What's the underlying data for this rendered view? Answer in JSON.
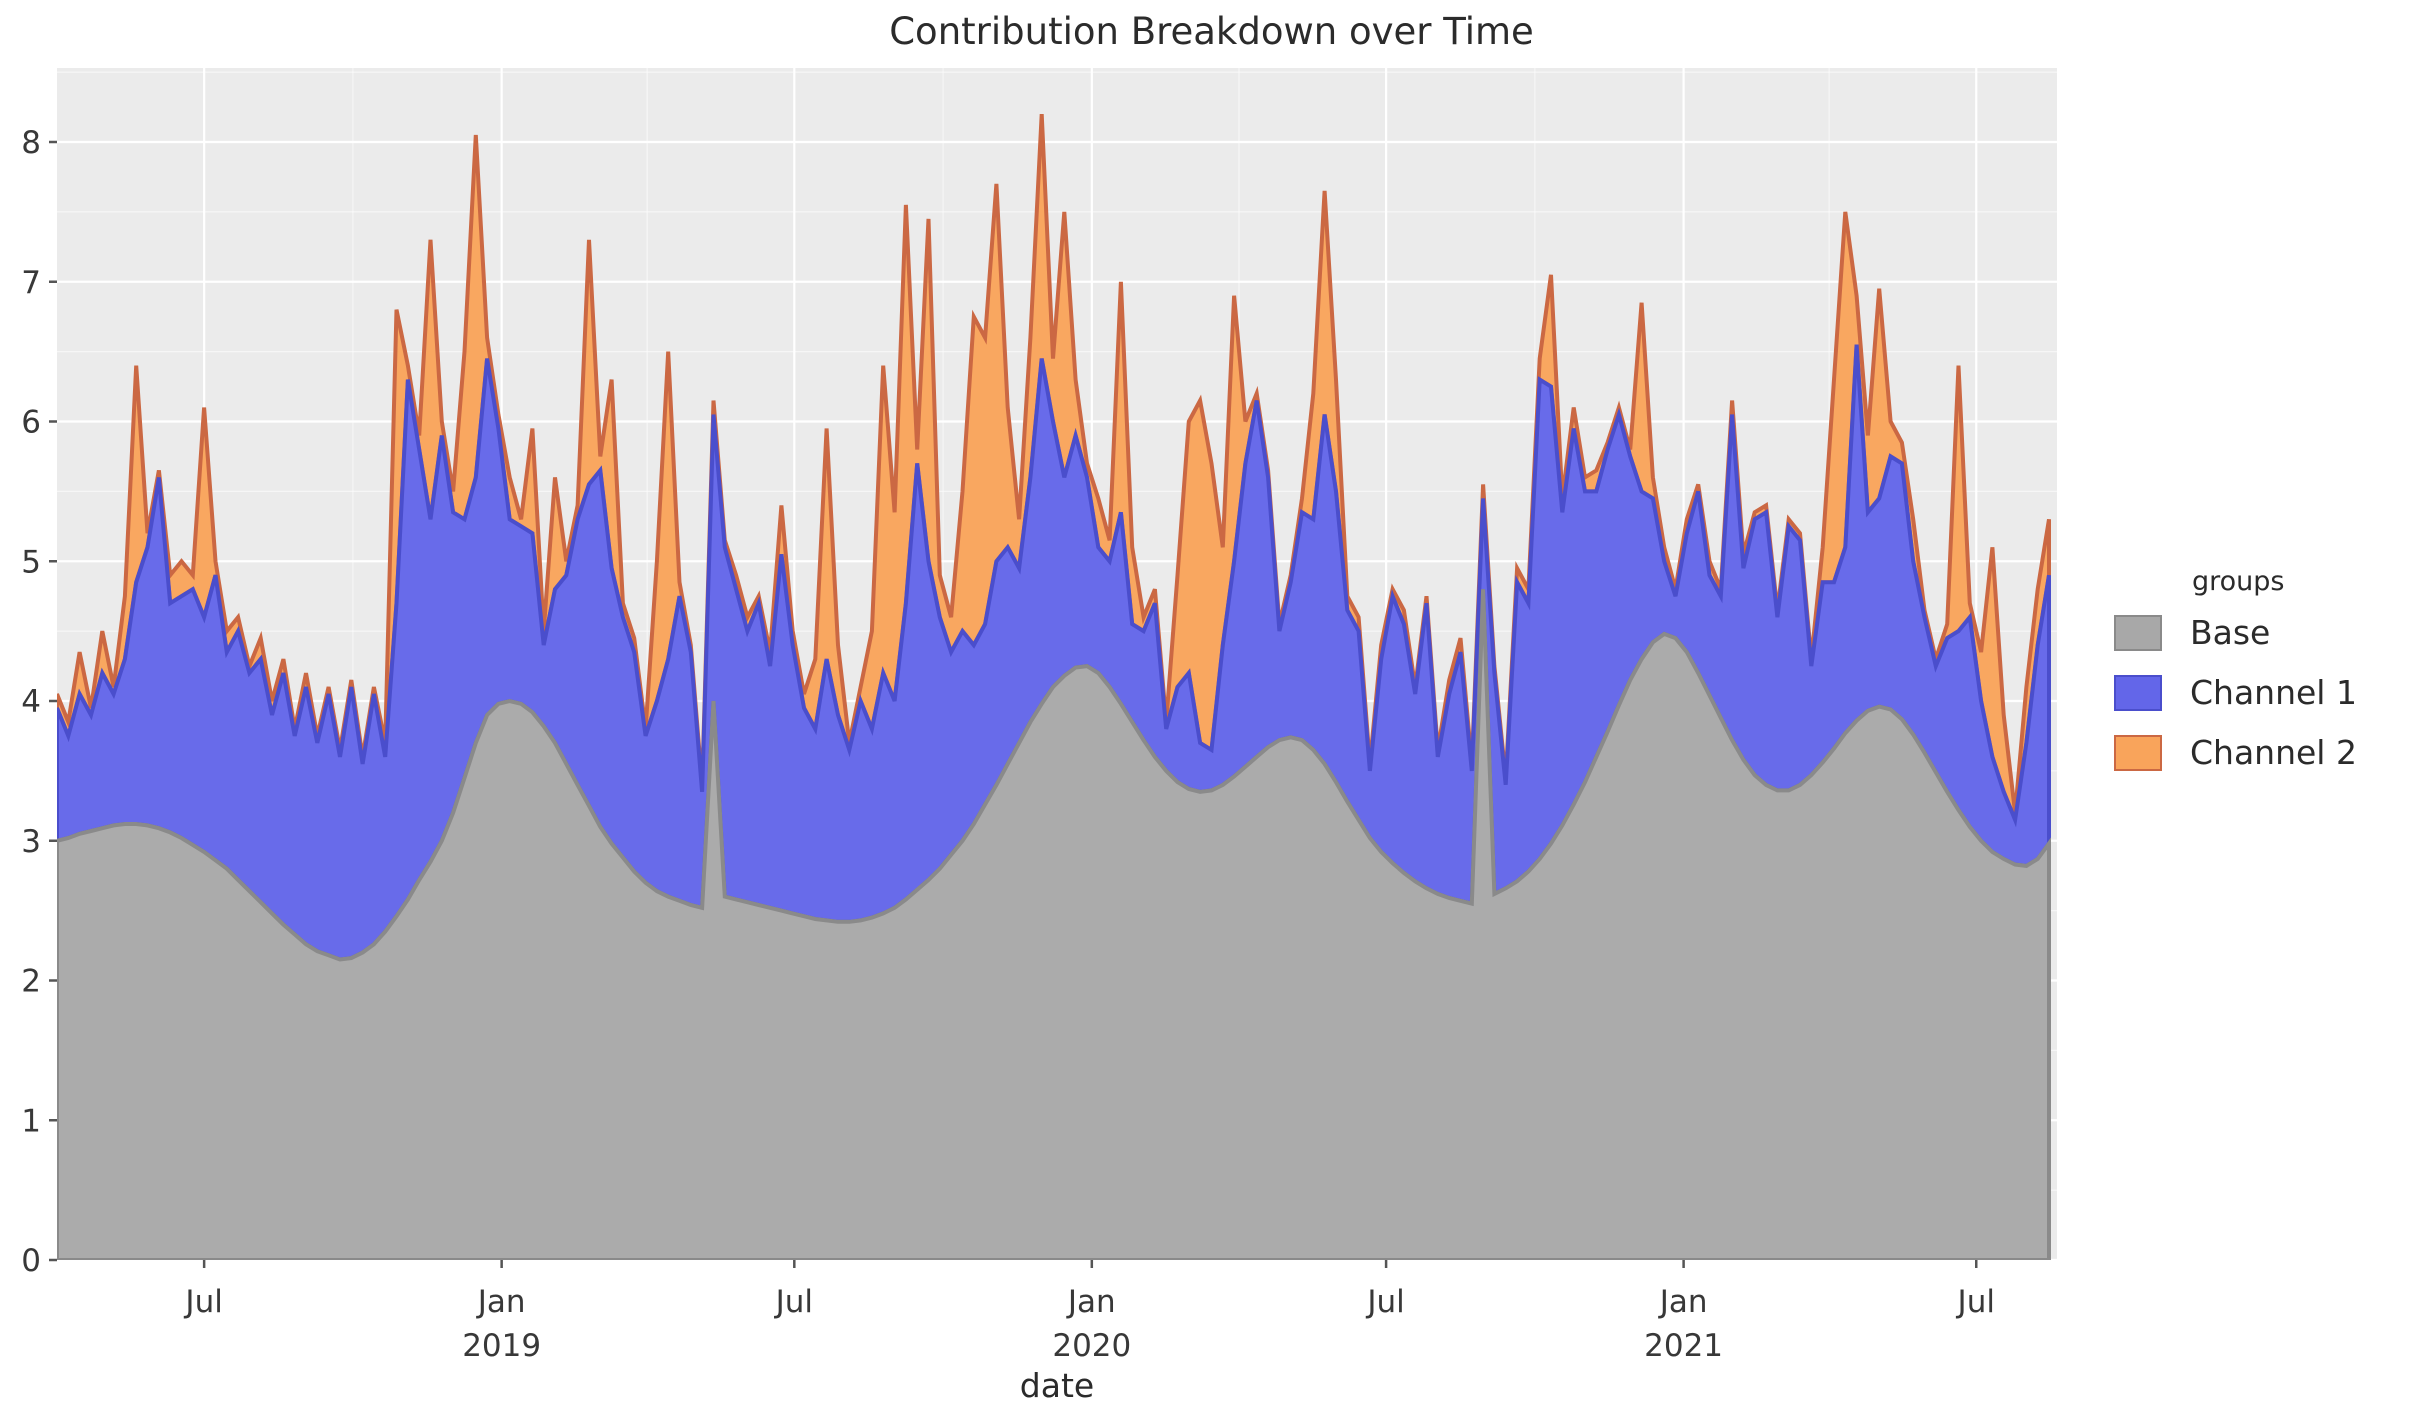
{
  "title": "Contribution Breakdown over Time",
  "x_axis_title": "date",
  "legend": {
    "title": "groups",
    "entries": [
      {
        "label": "Base"
      },
      {
        "label": "Channel 1"
      },
      {
        "label": "Channel 2"
      }
    ]
  },
  "colors": {
    "panel_background": "#ebebeb",
    "figure_background": "#ffffff",
    "major_grid": "#ffffff",
    "minor_grid": "#f7f7f7",
    "text": "#2b2b2b",
    "tick_text": "#383838"
  },
  "chart_data": {
    "type": "area",
    "stacked": true,
    "title": "Contribution Breakdown over Time",
    "xlabel": "date",
    "ylabel": "",
    "grid": true,
    "legend_position": "right",
    "ylim": [
      0,
      8.53
    ],
    "y_ticks": [
      0,
      1,
      2,
      3,
      4,
      5,
      6,
      7,
      8
    ],
    "x_start_date": "2018-04-01",
    "x_step_days": 7,
    "n_points": 177,
    "x_ticks": [
      {
        "date": "2018-07-01",
        "label": "Jul",
        "year": ""
      },
      {
        "date": "2019-01-01",
        "label": "Jan",
        "year": "2019"
      },
      {
        "date": "2019-07-01",
        "label": "Jul",
        "year": ""
      },
      {
        "date": "2020-01-01",
        "label": "Jan",
        "year": "2020"
      },
      {
        "date": "2020-07-01",
        "label": "Jul",
        "year": ""
      },
      {
        "date": "2021-01-01",
        "label": "Jan",
        "year": "2021"
      },
      {
        "date": "2021-07-01",
        "label": "Jul",
        "year": ""
      }
    ],
    "x_minor_tick_dates": [
      "2018-10-01",
      "2019-04-01",
      "2019-10-01",
      "2020-04-01",
      "2020-10-01",
      "2021-04-01"
    ],
    "series": [
      {
        "name": "Base",
        "fill": "#a8a8a8",
        "stroke": "#8a8a8a",
        "values": [
          3.0,
          3.02,
          3.05,
          3.07,
          3.09,
          3.11,
          3.12,
          3.12,
          3.11,
          3.09,
          3.06,
          3.02,
          2.97,
          2.92,
          2.86,
          2.8,
          2.72,
          2.64,
          2.56,
          2.48,
          2.4,
          2.33,
          2.26,
          2.21,
          2.18,
          2.15,
          2.16,
          2.2,
          2.26,
          2.35,
          2.46,
          2.58,
          2.72,
          2.85,
          3.0,
          3.2,
          3.45,
          3.7,
          3.9,
          3.98,
          4.0,
          3.98,
          3.92,
          3.82,
          3.7,
          3.55,
          3.4,
          3.25,
          3.1,
          2.98,
          2.88,
          2.78,
          2.7,
          2.64,
          2.6,
          2.57,
          2.54,
          2.52,
          4.0,
          2.6,
          2.58,
          2.56,
          2.54,
          2.52,
          2.5,
          2.48,
          2.46,
          2.44,
          2.43,
          2.42,
          2.42,
          2.43,
          2.45,
          2.48,
          2.52,
          2.58,
          2.65,
          2.72,
          2.8,
          2.9,
          3.0,
          3.12,
          3.26,
          3.4,
          3.55,
          3.7,
          3.85,
          3.98,
          4.1,
          4.18,
          4.24,
          4.25,
          4.2,
          4.1,
          3.98,
          3.85,
          3.72,
          3.6,
          3.5,
          3.42,
          3.37,
          3.35,
          3.36,
          3.4,
          3.46,
          3.53,
          3.6,
          3.67,
          3.72,
          3.74,
          3.72,
          3.65,
          3.55,
          3.42,
          3.28,
          3.15,
          3.02,
          2.92,
          2.84,
          2.77,
          2.71,
          2.66,
          2.62,
          2.59,
          2.57,
          2.55,
          4.8,
          2.62,
          2.66,
          2.71,
          2.78,
          2.87,
          2.98,
          3.11,
          3.26,
          3.42,
          3.6,
          3.78,
          3.97,
          4.15,
          4.3,
          4.42,
          4.48,
          4.45,
          4.35,
          4.2,
          4.04,
          3.88,
          3.72,
          3.58,
          3.47,
          3.4,
          3.36,
          3.36,
          3.4,
          3.47,
          3.56,
          3.66,
          3.77,
          3.86,
          3.93,
          3.96,
          3.94,
          3.87,
          3.76,
          3.63,
          3.49,
          3.35,
          3.22,
          3.1,
          3.0,
          2.92,
          2.87,
          2.83,
          2.82,
          2.87,
          2.98
        ]
      },
      {
        "name": "Channel 1",
        "fill": "#6366e9",
        "stroke": "#4a4ecc",
        "values": [
          0.95,
          0.73,
          1.0,
          0.83,
          1.11,
          0.94,
          1.18,
          1.73,
          1.99,
          2.51,
          1.64,
          1.73,
          1.83,
          1.68,
          2.04,
          1.55,
          1.78,
          1.56,
          1.74,
          1.42,
          1.8,
          1.42,
          1.84,
          1.49,
          1.87,
          1.45,
          1.94,
          1.35,
          1.79,
          1.25,
          2.24,
          3.72,
          3.08,
          2.45,
          2.9,
          2.15,
          1.85,
          1.9,
          2.55,
          1.97,
          1.3,
          1.27,
          1.28,
          0.58,
          1.1,
          1.35,
          1.9,
          2.3,
          2.55,
          1.97,
          1.72,
          1.57,
          1.05,
          1.36,
          1.7,
          2.18,
          1.81,
          0.83,
          2.05,
          2.5,
          2.22,
          1.94,
          2.16,
          1.73,
          2.55,
          1.92,
          1.49,
          1.36,
          1.87,
          1.48,
          1.23,
          1.57,
          1.35,
          1.72,
          1.48,
          2.12,
          3.05,
          2.28,
          1.8,
          1.45,
          1.5,
          1.28,
          1.29,
          1.6,
          1.55,
          1.25,
          1.75,
          2.47,
          1.9,
          1.42,
          1.66,
          1.35,
          0.9,
          0.9,
          1.37,
          0.7,
          0.78,
          1.1,
          0.3,
          0.68,
          0.83,
          0.35,
          0.29,
          1.0,
          1.54,
          2.17,
          2.55,
          1.93,
          0.78,
          1.11,
          1.63,
          1.65,
          2.5,
          2.08,
          1.37,
          1.35,
          0.48,
          1.38,
          1.91,
          1.78,
          1.34,
          2.04,
          0.98,
          1.46,
          1.78,
          0.95,
          0.65,
          1.58,
          0.74,
          2.14,
          1.92,
          3.43,
          3.27,
          2.24,
          2.69,
          2.08,
          1.9,
          2.02,
          2.08,
          1.6,
          1.2,
          1.03,
          0.52,
          0.3,
          0.85,
          1.3,
          0.86,
          0.87,
          2.33,
          1.37,
          1.83,
          1.95,
          1.24,
          1.89,
          1.75,
          0.78,
          1.29,
          1.19,
          1.33,
          2.69,
          1.42,
          1.49,
          1.81,
          1.83,
          1.24,
          0.97,
          0.76,
          1.1,
          1.28,
          1.5,
          1.0,
          0.68,
          0.48,
          0.32,
          0.88,
          1.53,
          1.92
        ]
      },
      {
        "name": "Channel 2",
        "fill": "#f9a45b",
        "stroke": "#cb6843",
        "values": [
          0.1,
          0.1,
          0.3,
          0.05,
          0.3,
          0.05,
          0.45,
          1.55,
          0.1,
          0.05,
          0.2,
          0.25,
          0.1,
          1.5,
          0.1,
          0.15,
          0.1,
          0.05,
          0.15,
          0.1,
          0.1,
          0.05,
          0.1,
          0.05,
          0.05,
          0.05,
          0.05,
          0.05,
          0.05,
          0.1,
          2.1,
          0.1,
          0.1,
          2.0,
          0.1,
          0.15,
          1.2,
          2.45,
          0.15,
          0.1,
          0.3,
          0.05,
          0.75,
          0.1,
          0.8,
          0.1,
          0.1,
          1.75,
          0.1,
          1.35,
          0.1,
          0.1,
          0.05,
          1.0,
          2.2,
          0.1,
          0.05,
          0.05,
          0.1,
          0.05,
          0.1,
          0.1,
          0.05,
          0.1,
          0.35,
          0.1,
          0.1,
          0.5,
          1.65,
          0.5,
          0.05,
          0.1,
          0.7,
          2.2,
          1.35,
          2.85,
          0.1,
          2.45,
          0.3,
          0.25,
          1.0,
          2.35,
          2.05,
          2.7,
          1.0,
          0.35,
          1.0,
          1.75,
          0.45,
          1.9,
          0.4,
          0.1,
          0.35,
          0.15,
          1.65,
          0.55,
          0.1,
          0.1,
          0.05,
          0.8,
          1.8,
          2.45,
          2.05,
          0.7,
          1.9,
          0.3,
          0.05,
          0.05,
          0.05,
          0.05,
          0.1,
          0.9,
          1.6,
          0.8,
          0.1,
          0.1,
          0.05,
          0.1,
          0.05,
          0.1,
          0.05,
          0.05,
          0.05,
          0.1,
          0.1,
          0.05,
          0.1,
          0.05,
          0.05,
          0.1,
          0.1,
          0.15,
          0.8,
          0.1,
          0.15,
          0.1,
          0.15,
          0.05,
          0.05,
          0.05,
          1.35,
          0.15,
          0.1,
          0.05,
          0.1,
          0.05,
          0.1,
          0.05,
          0.1,
          0.1,
          0.05,
          0.05,
          0.05,
          0.05,
          0.05,
          0.05,
          0.25,
          1.45,
          2.4,
          0.35,
          0.55,
          1.5,
          0.25,
          0.15,
          0.3,
          0.05,
          0.05,
          0.1,
          1.9,
          0.1,
          0.35,
          1.5,
          0.55,
          0.05,
          0.4,
          0.4,
          0.4
        ]
      }
    ]
  }
}
